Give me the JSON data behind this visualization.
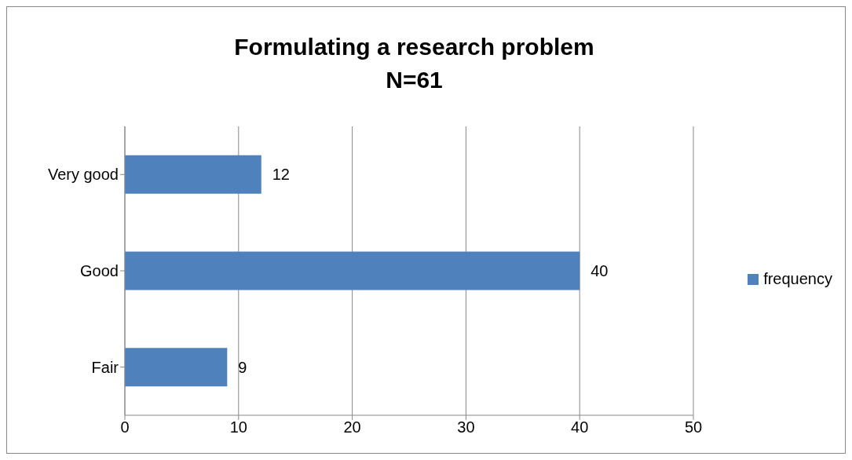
{
  "chart_data": {
    "type": "bar",
    "orientation": "horizontal",
    "title": "Formulating a research problem",
    "subtitle": "N=61",
    "categories": [
      "Very good",
      "Good",
      "Fair"
    ],
    "series": [
      {
        "name": "frequency",
        "color": "#4f81bd",
        "values": [
          12,
          40,
          9
        ]
      }
    ],
    "xlim": [
      0,
      50
    ],
    "xticks": [
      0,
      10,
      20,
      30,
      40,
      50
    ],
    "grid": "x",
    "legend": "right",
    "data_labels": true
  }
}
